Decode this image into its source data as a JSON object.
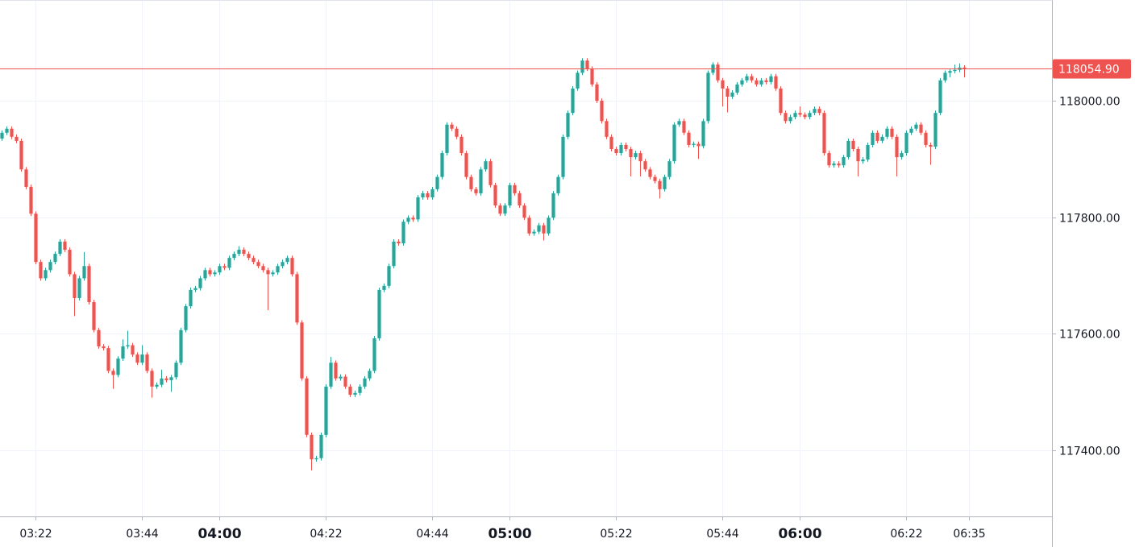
{
  "chart_data": {
    "type": "candlestick",
    "up_color": "#26a69a",
    "down_color": "#ef5350",
    "grid": true,
    "xlim": [
      "03:14:40",
      "06:52:10"
    ],
    "ylim": [
      117286,
      118173
    ],
    "yticks": [
      {
        "value": 117400,
        "label": "117400.00"
      },
      {
        "value": 117600,
        "label": "117600.00"
      },
      {
        "value": 117800,
        "label": "117800.00"
      },
      {
        "value": 118000,
        "label": "118000.00"
      }
    ],
    "xticks": [
      "03:22",
      "03:44",
      "04:00",
      "04:22",
      "04:44",
      "05:00",
      "05:22",
      "05:44",
      "06:00",
      "06:22",
      "06:35"
    ],
    "last_price": {
      "value": 118054.9,
      "label": "118054.90",
      "color": "#ef5350"
    },
    "x": [
      "03:15",
      "03:16",
      "03:17",
      "03:18",
      "03:19",
      "03:20",
      "03:21",
      "03:22",
      "03:23",
      "03:24",
      "03:25",
      "03:26",
      "03:27",
      "03:28",
      "03:29",
      "03:30",
      "03:31",
      "03:32",
      "03:33",
      "03:34",
      "03:35",
      "03:36",
      "03:37",
      "03:38",
      "03:39",
      "03:40",
      "03:41",
      "03:42",
      "03:43",
      "03:44",
      "03:45",
      "03:46",
      "03:47",
      "03:48",
      "03:49",
      "03:50",
      "03:51",
      "03:52",
      "03:53",
      "03:54",
      "03:55",
      "03:56",
      "03:57",
      "03:58",
      "03:59",
      "04:00",
      "04:01",
      "04:02",
      "04:03",
      "04:04",
      "04:05",
      "04:06",
      "04:07",
      "04:08",
      "04:09",
      "04:10",
      "04:11",
      "04:12",
      "04:13",
      "04:14",
      "04:15",
      "04:16",
      "04:17",
      "04:18",
      "04:19",
      "04:20",
      "04:21",
      "04:22",
      "04:23",
      "04:24",
      "04:25",
      "04:26",
      "04:27",
      "04:28",
      "04:29",
      "04:30",
      "04:31",
      "04:32",
      "04:33",
      "04:34",
      "04:35",
      "04:36",
      "04:37",
      "04:38",
      "04:39",
      "04:40",
      "04:41",
      "04:42",
      "04:43",
      "04:44",
      "04:45",
      "04:46",
      "04:47",
      "04:48",
      "04:49",
      "04:50",
      "04:51",
      "04:52",
      "04:53",
      "04:54",
      "04:55",
      "04:56",
      "04:57",
      "04:58",
      "04:59",
      "05:00",
      "05:01",
      "05:02",
      "05:03",
      "05:04",
      "05:05",
      "05:06",
      "05:07",
      "05:08",
      "05:09",
      "05:10",
      "05:11",
      "05:12",
      "05:13",
      "05:14",
      "05:15",
      "05:16",
      "05:17",
      "05:18",
      "05:19",
      "05:20",
      "05:21",
      "05:22",
      "05:23",
      "05:24",
      "05:25",
      "05:26",
      "05:27",
      "05:28",
      "05:29",
      "05:30",
      "05:31",
      "05:32",
      "05:33",
      "05:34",
      "05:35",
      "05:36",
      "05:37",
      "05:38",
      "05:39",
      "05:40",
      "05:41",
      "05:42",
      "05:43",
      "05:44",
      "05:45",
      "05:46",
      "05:47",
      "05:48",
      "05:49",
      "05:50",
      "05:51",
      "05:52",
      "05:53",
      "05:54",
      "05:55",
      "05:56",
      "05:57",
      "05:58",
      "05:59",
      "06:00",
      "06:01",
      "06:02",
      "06:03",
      "06:04",
      "06:05",
      "06:06",
      "06:07",
      "06:08",
      "06:09",
      "06:10",
      "06:11",
      "06:12",
      "06:13",
      "06:14",
      "06:15",
      "06:16",
      "06:17",
      "06:18",
      "06:19",
      "06:20",
      "06:21",
      "06:22",
      "06:23",
      "06:24",
      "06:25",
      "06:26",
      "06:27",
      "06:28",
      "06:29",
      "06:30",
      "06:31",
      "06:32",
      "06:33",
      "06:34"
    ],
    "ohlc": [
      [
        117935,
        117949,
        117931,
        117945
      ],
      [
        117945,
        117956,
        117941,
        117952
      ],
      [
        117952,
        117956,
        117934,
        117938
      ],
      [
        117938,
        117942,
        117927,
        117931
      ],
      [
        117931,
        117935,
        117878,
        117882
      ],
      [
        117882,
        117886,
        117848,
        117852
      ],
      [
        117852,
        117856,
        117802,
        117806
      ],
      [
        117806,
        117810,
        117719,
        117723
      ],
      [
        117723,
        117727,
        117691,
        117695
      ],
      [
        117695,
        117713,
        117691,
        117709
      ],
      [
        117709,
        117727,
        117705,
        117723
      ],
      [
        117723,
        117741,
        117719,
        117737
      ],
      [
        117737,
        117762,
        117733,
        117758
      ],
      [
        117758,
        117762,
        117740,
        117744
      ],
      [
        117744,
        117748,
        117698,
        117702
      ],
      [
        117702,
        117706,
        117630,
        117661
      ],
      [
        117661,
        117699,
        117657,
        117695
      ],
      [
        117695,
        117740,
        117691,
        117716
      ],
      [
        117716,
        117720,
        117650,
        117654
      ],
      [
        117654,
        117658,
        117602,
        117606
      ],
      [
        117606,
        117610,
        117574,
        117578
      ],
      [
        117578,
        117582,
        117571,
        117575
      ],
      [
        117575,
        117579,
        117532,
        117536
      ],
      [
        117536,
        117540,
        117505,
        117529
      ],
      [
        117529,
        117561,
        117525,
        117557
      ],
      [
        117557,
        117590,
        117553,
        117578
      ],
      [
        117578,
        117605,
        117574,
        117580
      ],
      [
        117580,
        117584,
        117560,
        117564
      ],
      [
        117564,
        117568,
        117546,
        117550
      ],
      [
        117550,
        117580,
        117546,
        117564
      ],
      [
        117564,
        117568,
        117532,
        117536
      ],
      [
        117536,
        117540,
        117490,
        117509
      ],
      [
        117509,
        117516,
        117505,
        117512
      ],
      [
        117512,
        117538,
        117508,
        117523
      ],
      [
        117523,
        117527,
        117516,
        117520
      ],
      [
        117520,
        117529,
        117500,
        117525
      ],
      [
        117525,
        117554,
        117521,
        117550
      ],
      [
        117550,
        117610,
        117546,
        117606
      ],
      [
        117606,
        117651,
        117602,
        117647
      ],
      [
        117647,
        117679,
        117643,
        117675
      ],
      [
        117675,
        117682,
        117671,
        117678
      ],
      [
        117678,
        117699,
        117674,
        117695
      ],
      [
        117695,
        117713,
        117691,
        117709
      ],
      [
        117709,
        117713,
        117698,
        117702
      ],
      [
        117702,
        117709,
        117698,
        117705
      ],
      [
        117705,
        117720,
        117701,
        117716
      ],
      [
        117716,
        117720,
        117709,
        117713
      ],
      [
        117713,
        117734,
        117709,
        117730
      ],
      [
        117730,
        117741,
        117726,
        117737
      ],
      [
        117737,
        117750,
        117733,
        117744
      ],
      [
        117744,
        117748,
        117733,
        117737
      ],
      [
        117737,
        117741,
        117726,
        117730
      ],
      [
        117730,
        117734,
        117719,
        117723
      ],
      [
        117723,
        117727,
        117712,
        117716
      ],
      [
        117716,
        117720,
        117705,
        117709
      ],
      [
        117709,
        117713,
        117640,
        117702
      ],
      [
        117702,
        117709,
        117698,
        117705
      ],
      [
        117705,
        117720,
        117701,
        117716
      ],
      [
        117716,
        117727,
        117712,
        117723
      ],
      [
        117723,
        117734,
        117719,
        117730
      ],
      [
        117730,
        117734,
        117698,
        117702
      ],
      [
        117702,
        117706,
        117615,
        117619
      ],
      [
        117619,
        117623,
        117519,
        117523
      ],
      [
        117523,
        117527,
        117422,
        117426
      ],
      [
        117426,
        117430,
        117365,
        117384
      ],
      [
        117384,
        117390,
        117380,
        117386
      ],
      [
        117386,
        117430,
        117382,
        117426
      ],
      [
        117426,
        117513,
        117422,
        117509
      ],
      [
        117509,
        117560,
        117505,
        117550
      ],
      [
        117550,
        117554,
        117519,
        117523
      ],
      [
        117523,
        117530,
        117519,
        117526
      ],
      [
        117526,
        117530,
        117505,
        117509
      ],
      [
        117509,
        117513,
        117491,
        117495
      ],
      [
        117495,
        117502,
        117491,
        117498
      ],
      [
        117498,
        117513,
        117494,
        117509
      ],
      [
        117509,
        117527,
        117505,
        117523
      ],
      [
        117523,
        117540,
        117519,
        117536
      ],
      [
        117536,
        117596,
        117532,
        117592
      ],
      [
        117592,
        117679,
        117588,
        117675
      ],
      [
        117675,
        117686,
        117671,
        117682
      ],
      [
        117682,
        117720,
        117678,
        117716
      ],
      [
        117716,
        117762,
        117712,
        117758
      ],
      [
        117758,
        117762,
        117751,
        117755
      ],
      [
        117755,
        117796,
        117751,
        117792
      ],
      [
        117792,
        117803,
        117788,
        117799
      ],
      [
        117799,
        117803,
        117792,
        117796
      ],
      [
        117796,
        117838,
        117792,
        117834
      ],
      [
        117834,
        117845,
        117830,
        117841
      ],
      [
        117841,
        117845,
        117830,
        117834
      ],
      [
        117834,
        117852,
        117830,
        117848
      ],
      [
        117848,
        117873,
        117844,
        117869
      ],
      [
        117869,
        117914,
        117865,
        117910
      ],
      [
        117910,
        117963,
        117906,
        117959
      ],
      [
        117959,
        117963,
        117948,
        117952
      ],
      [
        117952,
        117956,
        117934,
        117938
      ],
      [
        117938,
        117942,
        117906,
        117910
      ],
      [
        117910,
        117914,
        117865,
        117869
      ],
      [
        117869,
        117873,
        117844,
        117848
      ],
      [
        117848,
        117852,
        117837,
        117841
      ],
      [
        117841,
        117886,
        117837,
        117882
      ],
      [
        117882,
        117900,
        117878,
        117896
      ],
      [
        117896,
        117900,
        117851,
        117855
      ],
      [
        117855,
        117859,
        117816,
        117820
      ],
      [
        117820,
        117824,
        117802,
        117806
      ],
      [
        117806,
        117824,
        117802,
        117820
      ],
      [
        117820,
        117859,
        117816,
        117855
      ],
      [
        117855,
        117859,
        117837,
        117841
      ],
      [
        117841,
        117845,
        117816,
        117820
      ],
      [
        117820,
        117824,
        117795,
        117799
      ],
      [
        117799,
        117803,
        117768,
        117772
      ],
      [
        117772,
        117779,
        117768,
        117775
      ],
      [
        117775,
        117790,
        117771,
        117786
      ],
      [
        117786,
        117790,
        117760,
        117772
      ],
      [
        117772,
        117803,
        117768,
        117799
      ],
      [
        117799,
        117845,
        117795,
        117841
      ],
      [
        117841,
        117873,
        117837,
        117869
      ],
      [
        117869,
        117942,
        117865,
        117938
      ],
      [
        117938,
        117983,
        117934,
        117979
      ],
      [
        117979,
        118025,
        117975,
        118021
      ],
      [
        118021,
        118052,
        118017,
        118048
      ],
      [
        118048,
        118073,
        118044,
        118069
      ],
      [
        118069,
        118073,
        118051,
        118055
      ],
      [
        118055,
        118059,
        118024,
        118028
      ],
      [
        118028,
        118032,
        117996,
        118000
      ],
      [
        118000,
        118004,
        117961,
        117965
      ],
      [
        117965,
        117969,
        117934,
        117938
      ],
      [
        117938,
        117942,
        117913,
        117917
      ],
      [
        117917,
        117921,
        117906,
        117910
      ],
      [
        117910,
        117928,
        117906,
        117924
      ],
      [
        117924,
        117928,
        117913,
        117917
      ],
      [
        117917,
        117921,
        117870,
        117903
      ],
      [
        117903,
        117914,
        117899,
        117910
      ],
      [
        117910,
        117914,
        117870,
        117896
      ],
      [
        117896,
        117900,
        117878,
        117882
      ],
      [
        117882,
        117886,
        117865,
        117869
      ],
      [
        117869,
        117873,
        117858,
        117862
      ],
      [
        117862,
        117866,
        117832,
        117848
      ],
      [
        117848,
        117873,
        117844,
        117869
      ],
      [
        117869,
        117900,
        117865,
        117896
      ],
      [
        117896,
        117963,
        117892,
        117959
      ],
      [
        117959,
        117969,
        117955,
        117965
      ],
      [
        117965,
        117969,
        117941,
        117945
      ],
      [
        117945,
        117949,
        117920,
        117924
      ],
      [
        117924,
        117930,
        117920,
        117926
      ],
      [
        117926,
        117930,
        117900,
        117922
      ],
      [
        117922,
        117969,
        117918,
        117965
      ],
      [
        117965,
        118052,
        117961,
        118048
      ],
      [
        118048,
        118066,
        118044,
        118062
      ],
      [
        118062,
        118066,
        118031,
        118035
      ],
      [
        118035,
        118039,
        117990,
        118021
      ],
      [
        118021,
        118025,
        117980,
        118007
      ],
      [
        118007,
        118018,
        118003,
        118014
      ],
      [
        118014,
        118032,
        118010,
        118028
      ],
      [
        118028,
        118039,
        118024,
        118035
      ],
      [
        118035,
        118046,
        118031,
        118042
      ],
      [
        118042,
        118046,
        118031,
        118035
      ],
      [
        118035,
        118039,
        118024,
        118028
      ],
      [
        118028,
        118039,
        118024,
        118035
      ],
      [
        118035,
        118039,
        118028,
        118032
      ],
      [
        118032,
        118046,
        118028,
        118042
      ],
      [
        118042,
        118046,
        118017,
        118021
      ],
      [
        118021,
        118025,
        117975,
        117979
      ],
      [
        117979,
        117983,
        117961,
        117965
      ],
      [
        117965,
        117976,
        117961,
        117972
      ],
      [
        117972,
        117983,
        117968,
        117979
      ],
      [
        117979,
        117990,
        117972,
        117976
      ],
      [
        117976,
        117980,
        117968,
        117972
      ],
      [
        117972,
        117983,
        117968,
        117979
      ],
      [
        117979,
        117990,
        117975,
        117986
      ],
      [
        117986,
        117990,
        117975,
        117979
      ],
      [
        117979,
        117983,
        117906,
        117910
      ],
      [
        117910,
        117914,
        117885,
        117889
      ],
      [
        117889,
        117896,
        117885,
        117892
      ],
      [
        117892,
        117896,
        117885,
        117889
      ],
      [
        117889,
        117907,
        117885,
        117903
      ],
      [
        117903,
        117935,
        117899,
        117931
      ],
      [
        117931,
        117935,
        117913,
        117917
      ],
      [
        117917,
        117921,
        117870,
        117896
      ],
      [
        117896,
        117903,
        117892,
        117899
      ],
      [
        117899,
        117928,
        117895,
        117924
      ],
      [
        117924,
        117949,
        117920,
        117945
      ],
      [
        117945,
        117949,
        117927,
        117931
      ],
      [
        117931,
        117942,
        117927,
        117938
      ],
      [
        117938,
        117956,
        117934,
        117952
      ],
      [
        117952,
        117956,
        117934,
        117938
      ],
      [
        117938,
        117942,
        117870,
        117903
      ],
      [
        117903,
        117914,
        117899,
        117910
      ],
      [
        117910,
        117949,
        117906,
        117945
      ],
      [
        117945,
        117956,
        117941,
        117952
      ],
      [
        117952,
        117963,
        117948,
        117959
      ],
      [
        117959,
        117963,
        117941,
        117945
      ],
      [
        117945,
        117949,
        117920,
        117924
      ],
      [
        117924,
        117928,
        117890,
        117921
      ],
      [
        117921,
        117983,
        117917,
        117979
      ],
      [
        117979,
        118039,
        117975,
        118035
      ],
      [
        118035,
        118052,
        118031,
        118048
      ],
      [
        118048,
        118055,
        118040,
        118051
      ],
      [
        118051,
        118062,
        118047,
        118053
      ],
      [
        118053,
        118064,
        118049,
        118057
      ],
      [
        118057,
        118061,
        118040,
        118054.9
      ]
    ]
  }
}
